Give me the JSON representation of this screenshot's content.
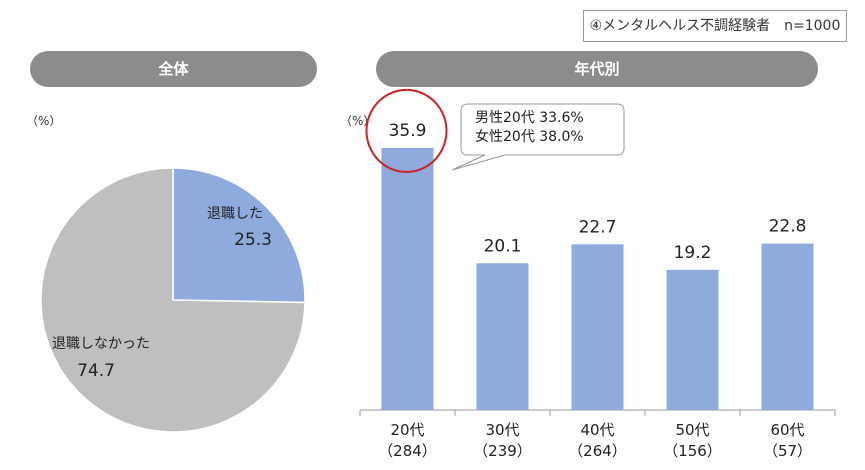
{
  "sample_note": "④メンタルヘルス不調経験者　n=1000",
  "panels": {
    "left_title": "全体",
    "right_title": "年代別"
  },
  "unit_label": "（%）",
  "callout": {
    "lines": [
      "男性20代  33.6%",
      "女性20代  38.0%"
    ]
  },
  "colors": {
    "blue": "#8faadc",
    "gray": "#bfbfbf",
    "pill": "#8c8c8c",
    "highlight": "#cc2222"
  },
  "chart_data": [
    {
      "type": "pie",
      "unit": "%",
      "slices": [
        {
          "label": "退職した",
          "value": 25.3,
          "display": "25.3",
          "color": "#8faadc"
        },
        {
          "label": "退職しなかった",
          "value": 74.7,
          "display": "74.7",
          "color": "#bfbfbf"
        }
      ]
    },
    {
      "type": "bar",
      "unit": "%",
      "categories": [
        "20代",
        "30代",
        "40代",
        "50代",
        "60代"
      ],
      "category_counts": [
        "（284）",
        "（239）",
        "（264）",
        "（156）",
        "（57）"
      ],
      "values": [
        35.9,
        20.1,
        22.7,
        19.2,
        22.8
      ],
      "value_labels": [
        "35.9",
        "20.1",
        "22.7",
        "19.2",
        "22.8"
      ],
      "highlighted_category": "20代",
      "ylim": [
        0,
        40
      ],
      "color": "#8faadc"
    }
  ]
}
